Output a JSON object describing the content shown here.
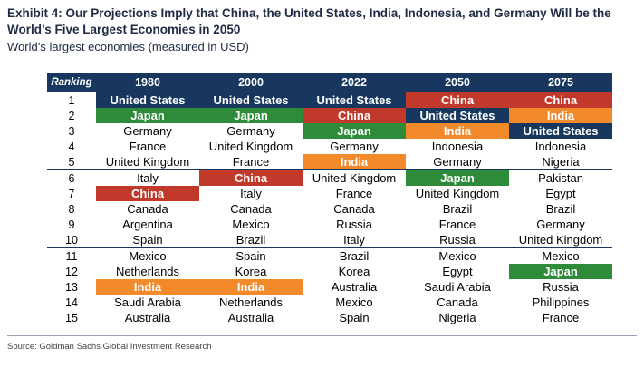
{
  "header": {
    "title": "Exhibit 4: Our Projections Imply that China, the United States, India, Indonesia, and Germany Will be the World’s Five Largest Economies in 2050",
    "subtitle": "World’s largest economies (measured in USD)"
  },
  "footer": {
    "source": "Source: Goldman Sachs Global Investment Research"
  },
  "colors": {
    "navy": "#17375e",
    "red": "#c0392b",
    "green": "#2e8b3a",
    "orange": "#f2892a"
  },
  "chart_data": {
    "type": "table",
    "columns": [
      "Ranking",
      "1980",
      "2000",
      "2022",
      "2050",
      "2075"
    ],
    "rows": [
      [
        "1",
        "United States",
        "United States",
        "United States",
        "China",
        "China"
      ],
      [
        "2",
        "Japan",
        "Japan",
        "China",
        "United States",
        "India"
      ],
      [
        "3",
        "Germany",
        "Germany",
        "Japan",
        "India",
        "United States"
      ],
      [
        "4",
        "France",
        "United Kingdom",
        "Germany",
        "Indonesia",
        "Indonesia"
      ],
      [
        "5",
        "United Kingdom",
        "France",
        "India",
        "Germany",
        "Nigeria"
      ],
      [
        "6",
        "Italy",
        "China",
        "United Kingdom",
        "Japan",
        "Pakistan"
      ],
      [
        "7",
        "China",
        "Italy",
        "France",
        "United Kingdom",
        "Egypt"
      ],
      [
        "8",
        "Canada",
        "Canada",
        "Canada",
        "Brazil",
        "Brazil"
      ],
      [
        "9",
        "Argentina",
        "Mexico",
        "Russia",
        "France",
        "Germany"
      ],
      [
        "10",
        "Spain",
        "Brazil",
        "Italy",
        "Russia",
        "United Kingdom"
      ],
      [
        "11",
        "Mexico",
        "Spain",
        "Brazil",
        "Mexico",
        "Mexico"
      ],
      [
        "12",
        "Netherlands",
        "Korea",
        "Korea",
        "Egypt",
        "Japan"
      ],
      [
        "13",
        "India",
        "India",
        "Australia",
        "Saudi Arabia",
        "Russia"
      ],
      [
        "14",
        "Saudi Arabia",
        "Netherlands",
        "Mexico",
        "Canada",
        "Philippines"
      ],
      [
        "15",
        "Australia",
        "Australia",
        "Spain",
        "Nigeria",
        "France"
      ]
    ],
    "highlights": {
      "United States": "navy",
      "China": "red",
      "Japan": "green",
      "India": "orange"
    }
  }
}
